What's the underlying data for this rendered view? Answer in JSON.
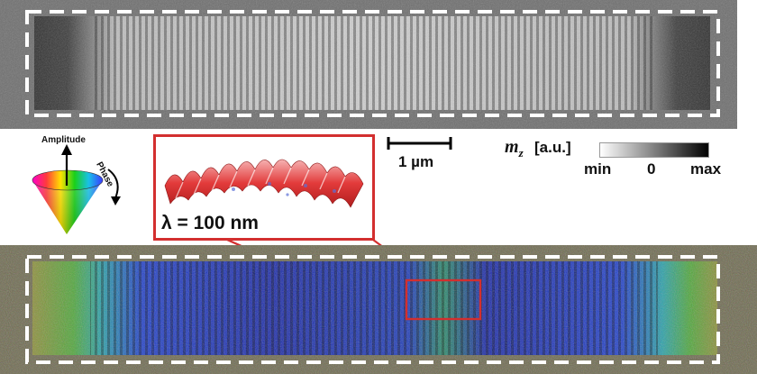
{
  "panels": {
    "top": {
      "kind": "grayscale-mz-snapshot"
    },
    "bottom": {
      "kind": "amplitude-phase-snapshot"
    }
  },
  "cone_legend": {
    "amplitude_label": "Amplitude",
    "phase_label": "Phase"
  },
  "scale_bar": {
    "label": "1 µm"
  },
  "colorbar": {
    "symbol": "m",
    "subscript": "z",
    "unit": "[a.u.]",
    "tick_min": "min",
    "tick_zero": "0",
    "tick_max": "max"
  },
  "inset": {
    "label": "λ = 100 nm",
    "accent_color": "#d32f2f"
  }
}
